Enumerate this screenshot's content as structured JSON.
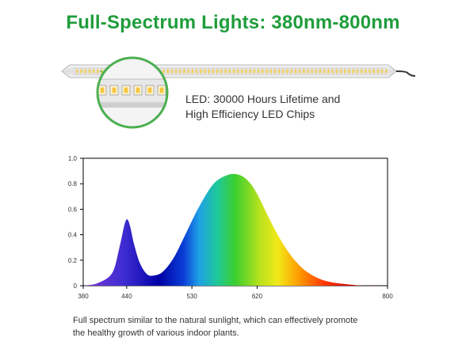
{
  "headline": "Full-Spectrum Lights: 380nm-800nm",
  "feature": {
    "line1": "LED: 30000 Hours Lifetime and",
    "line2": "High Efficiency LED Chips"
  },
  "chart_data": {
    "type": "area",
    "x_ticks": [
      "380",
      "440",
      "530",
      "620",
      "800"
    ],
    "y_ticks": [
      "0",
      "0.2",
      "0.4",
      "0.6",
      "0.8",
      "1.0"
    ],
    "xlim": [
      380,
      800
    ],
    "ylim": [
      0,
      1.0
    ],
    "series": [
      {
        "x": [
          380,
          400,
          420,
          430,
          437,
          441,
          445,
          450,
          458,
          468,
          478,
          490,
          505,
          520,
          540,
          560,
          580,
          595,
          608,
          620,
          640,
          660,
          680,
          700,
          720,
          745,
          770,
          800
        ],
        "y": [
          0.0,
          0.02,
          0.1,
          0.3,
          0.48,
          0.52,
          0.46,
          0.33,
          0.18,
          0.09,
          0.08,
          0.11,
          0.22,
          0.39,
          0.62,
          0.8,
          0.87,
          0.87,
          0.82,
          0.72,
          0.49,
          0.29,
          0.15,
          0.07,
          0.03,
          0.01,
          0.0,
          0.0
        ]
      }
    ],
    "grid": false,
    "legend": "none"
  },
  "caption": {
    "line1": "Full spectrum similar to the natural sunlight, which can effectively promote",
    "line2": "the healthy growth of various indoor plants."
  },
  "colors": {
    "headline_green": "#1f9d3c",
    "circle_border": "#4caf50"
  }
}
